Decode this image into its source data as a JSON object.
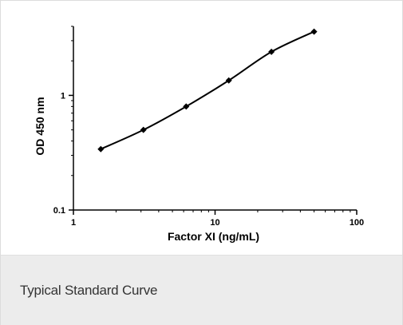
{
  "caption": "Typical Standard Curve",
  "colors": {
    "caption_bg": "#ececec",
    "line": "#000000"
  },
  "chart_data": {
    "type": "line",
    "title": "",
    "xlabel": "Factor XI (ng/mL)",
    "ylabel": "OD 450 nm",
    "x_scale": "log",
    "y_scale": "log",
    "xlim": [
      1,
      100
    ],
    "ylim": [
      0.1,
      4
    ],
    "x_ticks": [
      "1",
      "10",
      "100"
    ],
    "y_ticks": [
      "0.1",
      "1"
    ],
    "grid": false,
    "series": [
      {
        "x": [
          1.56,
          3.12,
          6.25,
          12.5,
          25,
          50
        ],
        "y": [
          0.34,
          0.5,
          0.8,
          1.35,
          2.4,
          3.6
        ]
      }
    ]
  }
}
